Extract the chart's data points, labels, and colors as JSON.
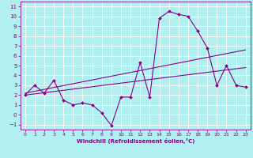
{
  "xlabel": "Windchill (Refroidissement éolien,°C)",
  "background_color": "#b0f0f0",
  "grid_color": "#ffffff",
  "line_color": "#880088",
  "xlim": [
    -0.5,
    23.5
  ],
  "ylim": [
    -1.5,
    11.5
  ],
  "yticks": [
    -1,
    0,
    1,
    2,
    3,
    4,
    5,
    6,
    7,
    8,
    9,
    10,
    11
  ],
  "xticks": [
    0,
    1,
    2,
    3,
    4,
    5,
    6,
    7,
    8,
    9,
    10,
    11,
    12,
    13,
    14,
    15,
    16,
    17,
    18,
    19,
    20,
    21,
    22,
    23
  ],
  "line1_x": [
    0,
    1,
    2,
    3,
    4,
    5,
    6,
    7,
    8,
    9,
    10,
    11,
    12,
    13,
    14,
    15,
    16,
    17,
    18,
    19,
    20,
    21,
    22,
    23
  ],
  "line1_y": [
    2.0,
    3.0,
    2.2,
    3.5,
    1.5,
    1.0,
    1.2,
    1.0,
    0.2,
    -1.1,
    1.8,
    1.8,
    5.3,
    1.8,
    9.8,
    10.5,
    10.2,
    10.0,
    8.5,
    6.8,
    3.0,
    5.0,
    3.0,
    2.8
  ],
  "line2_x": [
    0,
    23
  ],
  "line2_y": [
    2.2,
    6.6
  ],
  "line3_x": [
    0,
    23
  ],
  "line3_y": [
    2.0,
    4.8
  ]
}
